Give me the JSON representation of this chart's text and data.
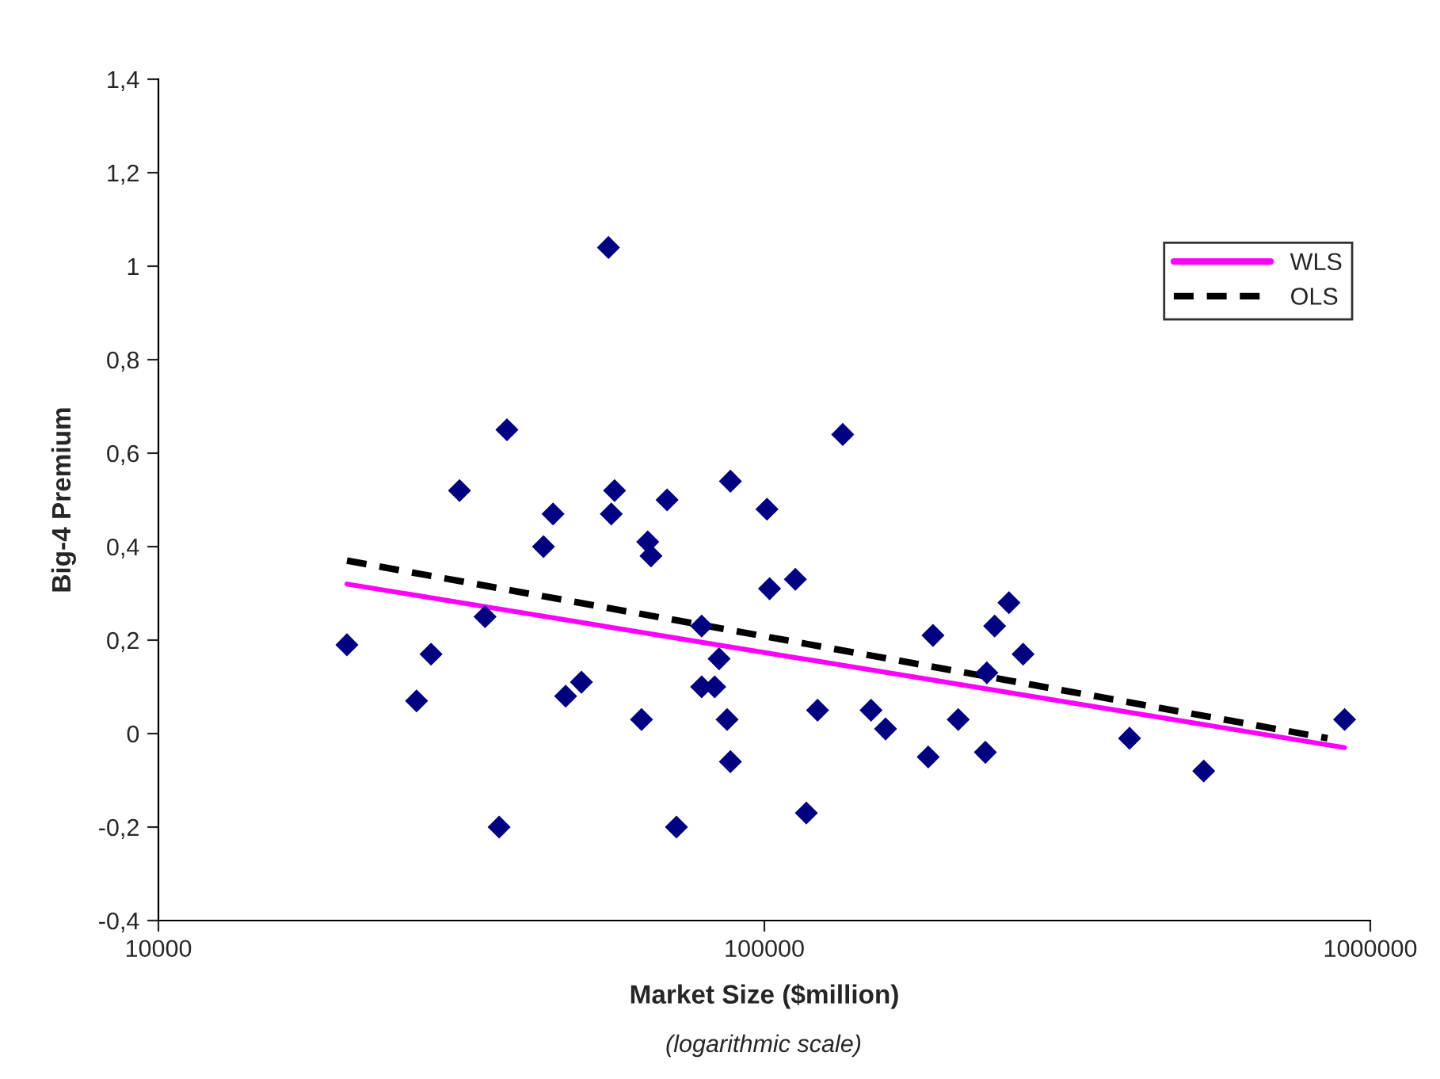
{
  "chart_data": {
    "type": "scatter",
    "xlabel": "Market Size ($million)",
    "ylabel": "Big-4 Premium",
    "annotations": [
      "(logarithmic scale)"
    ],
    "log": "x",
    "xlim": [
      10000,
      1000000
    ],
    "xticks": [
      10000,
      100000,
      1000000
    ],
    "ylim": [
      -0.4,
      1.4
    ],
    "yticks": [
      {
        "value": -0.4,
        "label": "-0,4"
      },
      {
        "value": -0.2,
        "label": "-0,2"
      },
      {
        "value": 0,
        "label": "0"
      },
      {
        "value": 0.2,
        "label": "0,2"
      },
      {
        "value": 0.4,
        "label": "0,4"
      },
      {
        "value": 0.6,
        "label": "0,6"
      },
      {
        "value": 0.8,
        "label": "0,8"
      },
      {
        "value": 1,
        "label": "1"
      },
      {
        "value": 1.2,
        "label": "1,2"
      },
      {
        "value": 1.4,
        "label": "1,4"
      }
    ],
    "grid": false,
    "legend": "top right",
    "series": [
      {
        "color": "#000080",
        "marker": "diamond",
        "x": [
          20470,
          26670,
          28180,
          31400,
          34600,
          36500,
          37600,
          43200,
          44800,
          47000,
          49900,
          55300,
          55900,
          56600,
          62700,
          64200,
          65000,
          69100,
          71600,
          78800,
          78800,
          82800,
          84200,
          86800,
          87900,
          87900,
          101000,
          102000,
          112500,
          117300,
          122400,
          134700,
          150000,
          158500,
          186400,
          189800,
          208900,
          231600,
          232900,
          239900,
          253300,
          267300,
          400600,
          531000,
          907000
        ],
        "values": [
          0.19,
          0.07,
          0.17,
          0.52,
          0.25,
          -0.2,
          0.65,
          0.4,
          0.47,
          0.08,
          0.11,
          1.04,
          0.47,
          0.52,
          0.03,
          0.41,
          0.38,
          0.5,
          -0.2,
          0.23,
          0.1,
          0.1,
          0.16,
          0.03,
          -0.06,
          0.54,
          0.48,
          0.31,
          0.33,
          -0.17,
          0.05,
          0.64,
          0.05,
          0.01,
          -0.05,
          0.21,
          0.03,
          -0.04,
          0.13,
          0.23,
          0.28,
          0.17,
          -0.01,
          -0.08,
          0.03
        ]
      },
      {
        "type": "line",
        "name": "WLS",
        "color": "#ff00ff",
        "line_style": "solid",
        "x": [
          20470,
          907000
        ],
        "values": [
          0.32,
          -0.03
        ]
      },
      {
        "type": "line",
        "name": "OLS",
        "color": "#000000",
        "line_style": "dashed",
        "x": [
          20470,
          850000
        ],
        "values": [
          0.37,
          -0.01
        ]
      }
    ]
  }
}
